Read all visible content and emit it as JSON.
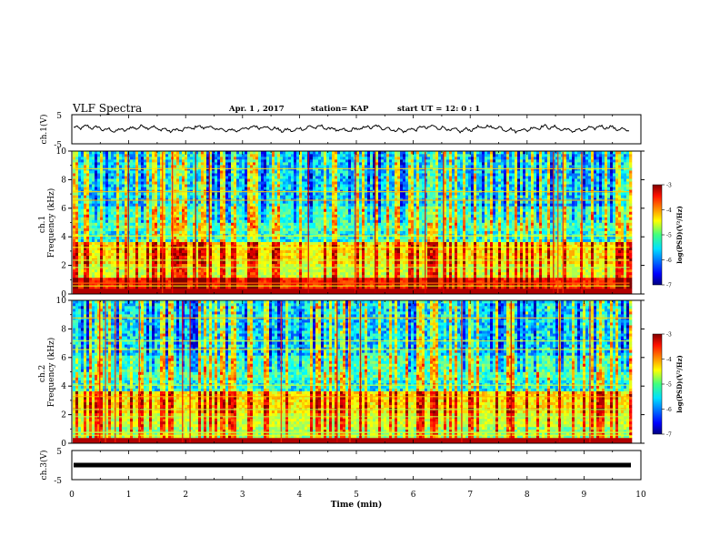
{
  "header": {
    "title": "VLF Spectra",
    "date": "Apr. 1 , 2017",
    "station": "station= KAP",
    "start": "start  UT =   12: 0  : 1"
  },
  "chart_data": [
    {
      "type": "line",
      "panel": "ch1-waveform",
      "ylabel": "ch.1(V)",
      "ylim": [
        -5,
        5
      ],
      "yticks": [
        "5",
        "-5"
      ],
      "xlim": [
        0,
        10
      ],
      "mean_level": 0.2,
      "amplitude": 1.4
    },
    {
      "type": "heatmap",
      "panel": "ch1-spectrogram",
      "ylabel": "ch.1\nFrequency (kHz)",
      "ylim": [
        0,
        10
      ],
      "yticks": [
        "0",
        "2",
        "4",
        "6",
        "8",
        "10"
      ],
      "xlim": [
        0,
        10
      ],
      "data_end_min": 9.8,
      "colorbar": {
        "label": "log(PSD)(V²/Hz)",
        "range": [
          -7,
          -3
        ],
        "ticks": [
          "-3",
          "-4",
          "-5",
          "-6",
          "-7"
        ]
      }
    },
    {
      "type": "heatmap",
      "panel": "ch2-spectrogram",
      "ylabel": "ch.2\nFrequency (kHz)",
      "ylim": [
        0,
        10
      ],
      "yticks": [
        "0",
        "2",
        "4",
        "6",
        "8",
        "10"
      ],
      "xlim": [
        0,
        10
      ],
      "data_end_min": 9.8,
      "colorbar": {
        "label": "log(PSD)(V²/Hz)",
        "range": [
          -7,
          -3
        ],
        "ticks": [
          "-3",
          "-4",
          "-5",
          "-6",
          "-7"
        ]
      }
    },
    {
      "type": "line",
      "panel": "ch3-waveform",
      "ylabel": "ch.3(V)",
      "ylim": [
        -5,
        5
      ],
      "yticks": [
        "5",
        "-5"
      ],
      "xlim": [
        0,
        10
      ],
      "mean_level": 0,
      "amplitude": 0
    }
  ],
  "xaxis": {
    "label": "Time (min)",
    "ticks": [
      "0",
      "1",
      "2",
      "3",
      "4",
      "5",
      "6",
      "7",
      "8",
      "9",
      "10"
    ]
  },
  "colors": {
    "axis": "#000000",
    "background": "#ffffff"
  }
}
